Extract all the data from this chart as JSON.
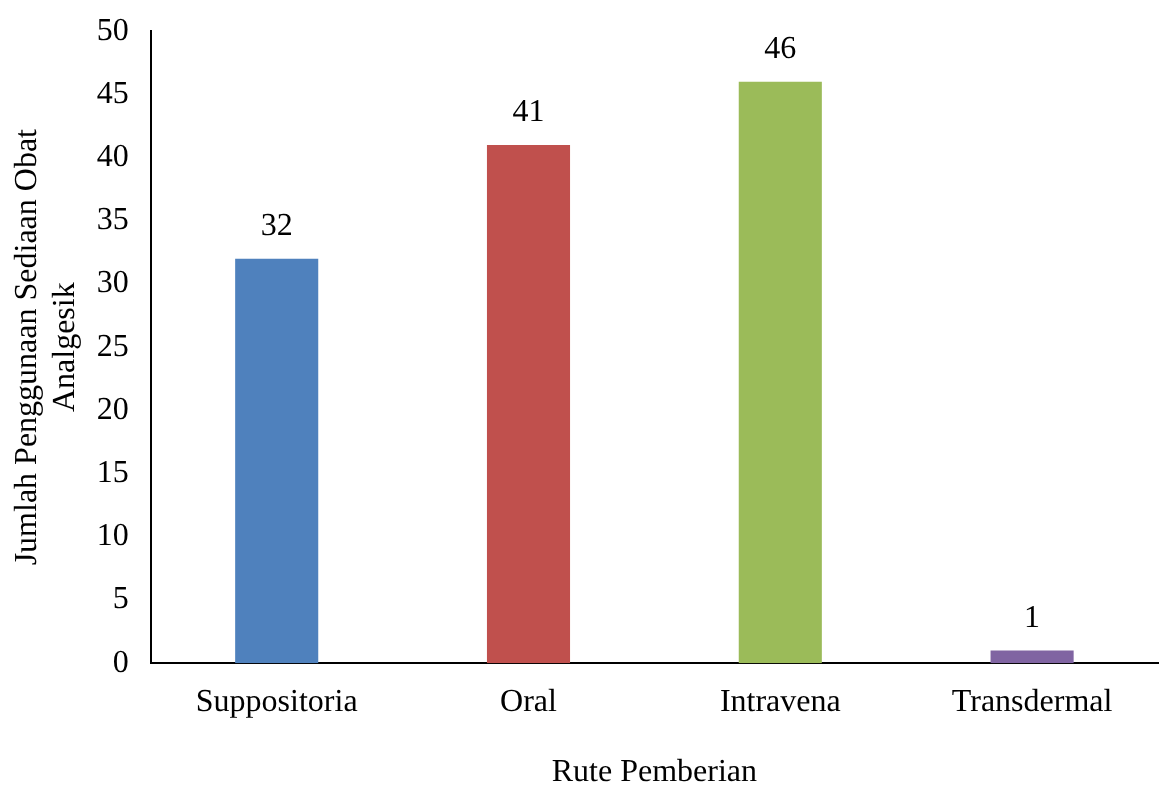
{
  "chart_data": {
    "type": "bar",
    "xlabel": "Rute Pemberian",
    "ylabel": "Jumlah Penggunaan Sediaan Obat Analgesik",
    "categories": [
      "Suppositoria",
      "Oral",
      "Intravena",
      "Transdermal"
    ],
    "values": [
      32,
      41,
      46,
      1
    ],
    "colors": [
      "#4f81bd",
      "#c0504d",
      "#9bbb59",
      "#8064a2"
    ],
    "ylim": [
      0,
      50
    ],
    "yticks": [
      0,
      5,
      10,
      15,
      20,
      25,
      30,
      35,
      40,
      45,
      50
    ],
    "grid": false,
    "legend": false,
    "data_labels": true
  }
}
